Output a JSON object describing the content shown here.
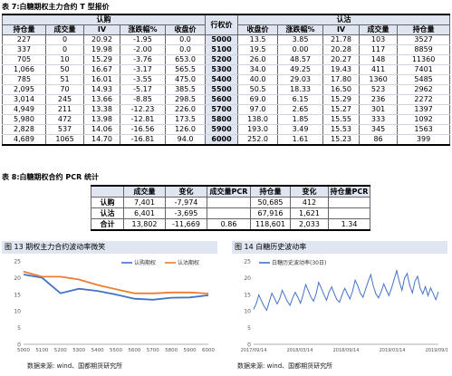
{
  "table7": {
    "caption": "表 7:白糖期权主力合约 T 型报价",
    "group_call": "认购",
    "group_strike": "行权价",
    "group_put": "认沽",
    "call_headers": [
      "持仓量",
      "成交量",
      "IV",
      "涨跌幅%",
      "收盘价"
    ],
    "put_headers": [
      "收盘价",
      "涨跌幅%",
      "IV",
      "成交量",
      "持仓量"
    ],
    "rows": [
      {
        "call": [
          "227",
          "0",
          "20.92",
          "-1.95",
          "0.0"
        ],
        "strike": "5000",
        "put": [
          "13.5",
          "3.85",
          "21.78",
          "103",
          "3527"
        ]
      },
      {
        "call": [
          "337",
          "0",
          "19.98",
          "-2.00",
          "0.0"
        ],
        "strike": "5100",
        "put": [
          "19.5",
          "0.00",
          "20.28",
          "117",
          "8859"
        ]
      },
      {
        "call": [
          "705",
          "10",
          "15.29",
          "-3.76",
          "653.0"
        ],
        "strike": "5200",
        "put": [
          "26.0",
          "48.57",
          "20.27",
          "148",
          "11360"
        ]
      },
      {
        "call": [
          "1,066",
          "50",
          "16.67",
          "-3.17",
          "565.5"
        ],
        "strike": "5300",
        "put": [
          "34.0",
          "49.25",
          "19.43",
          "411",
          "7401"
        ]
      },
      {
        "call": [
          "785",
          "51",
          "16.01",
          "-3.55",
          "475.0"
        ],
        "strike": "5400",
        "put": [
          "40.0",
          "29.03",
          "17.80",
          "1360",
          "5485"
        ]
      },
      {
        "call": [
          "2,095",
          "70",
          "14.93",
          "-5.17",
          "385.5"
        ],
        "strike": "5500",
        "put": [
          "50.5",
          "18.33",
          "16.50",
          "523",
          "2962"
        ]
      },
      {
        "call": [
          "3,014",
          "245",
          "13.66",
          "-8.85",
          "298.5"
        ],
        "strike": "5600",
        "put": [
          "69.0",
          "6.15",
          "15.29",
          "236",
          "2272"
        ]
      },
      {
        "call": [
          "4,949",
          "211",
          "13.38",
          "-12.23",
          "226.0"
        ],
        "strike": "5700",
        "put": [
          "97.0",
          "2.65",
          "15.27",
          "301",
          "1397"
        ]
      },
      {
        "call": [
          "5,980",
          "472",
          "13.98",
          "-12.81",
          "173.5"
        ],
        "strike": "5800",
        "put": [
          "138.0",
          "1.85",
          "15.55",
          "333",
          "1092"
        ]
      },
      {
        "call": [
          "2,828",
          "537",
          "14.06",
          "-16.56",
          "126.0"
        ],
        "strike": "5900",
        "put": [
          "193.0",
          "3.49",
          "15.53",
          "345",
          "1563"
        ]
      },
      {
        "call": [
          "4,689",
          "1065",
          "14.70",
          "-16.81",
          "94.0"
        ],
        "strike": "6000",
        "put": [
          "252.0",
          "1.61",
          "15.23",
          "86",
          "399"
        ]
      }
    ]
  },
  "table8": {
    "caption": "表 8:白糖期权合约 PCR 统计",
    "headers": [
      "",
      "成交量",
      "变化",
      "成交量PCR",
      "持仓量",
      "变化",
      "持仓量PCR"
    ],
    "rows": [
      [
        "认购",
        "7,401",
        "-7,974",
        "",
        "50,685",
        "412",
        ""
      ],
      [
        "认沽",
        "6,401",
        "-3,695",
        "",
        "67,916",
        "1,621",
        ""
      ],
      [
        "合计",
        "13,802",
        "-11,669",
        "0.86",
        "118,601",
        "2,033",
        "1.34"
      ]
    ]
  },
  "figure13": {
    "title": "图 13 期权主力合约波动率微笑",
    "source": "数据来源: wind、国都期货研究所",
    "chart_data": {
      "type": "line",
      "title": "",
      "x": [
        5000,
        5100,
        5200,
        5300,
        5400,
        5500,
        5600,
        5700,
        5800,
        5900,
        6000
      ],
      "x_tick_labels": [
        "5000",
        "5100",
        "5200",
        "5300",
        "5400",
        "5500",
        "5600",
        "5700",
        "5800",
        "5900",
        "6000"
      ],
      "series": [
        {
          "name": "认购期权",
          "color": "#4472c4",
          "values": [
            20.92,
            19.98,
            15.29,
            16.67,
            16.01,
            14.93,
            13.66,
            13.38,
            13.98,
            14.06,
            14.7
          ]
        },
        {
          "name": "认沽期权",
          "color": "#ed7d31",
          "values": [
            21.78,
            20.28,
            20.27,
            19.43,
            17.8,
            16.5,
            15.29,
            15.27,
            15.55,
            15.53,
            15.23
          ]
        }
      ],
      "ylim": [
        0,
        25
      ],
      "y_ticks": [
        0,
        5,
        10,
        15,
        20,
        25
      ],
      "legend": "top-right",
      "grid": false
    }
  },
  "figure14": {
    "title": "图 14 白糖历史波动率",
    "source": "数据来源: wind、国都期货研究所",
    "chart_data": {
      "type": "line",
      "title": "",
      "x_tick_labels": [
        "2017/09/14",
        "2018/03/14",
        "2018/09/14",
        "2019/03/14",
        "2019/09/14"
      ],
      "series": [
        {
          "name": "白糖历史波动率(30日)",
          "color": "#4472c4",
          "values": [
            10.5,
            12.2,
            14.8,
            13.1,
            11.4,
            10.2,
            12.7,
            15.3,
            13.8,
            12.1,
            13.6,
            16.2,
            14.5,
            12.8,
            11.7,
            13.9,
            15.6,
            14.1,
            12.3,
            14.8,
            17.9,
            16.1,
            14.2,
            12.9,
            15.1,
            18.6,
            16.8,
            14.9,
            13.2,
            15.7,
            17.2,
            15.1,
            13.4,
            12.6,
            14.9,
            16.8,
            15.2,
            13.6,
            15.9,
            19.2,
            17.6,
            15.3,
            14.1,
            16.4,
            18.8,
            20.9,
            17.4,
            15.1,
            13.9,
            15.8,
            18.1,
            16.3,
            14.6,
            16.9,
            19.5,
            22.1,
            18.7,
            16.2,
            19.8,
            21.2,
            17.6,
            15.4,
            18.9,
            20.4,
            16.8,
            15.1,
            17.3,
            14.6,
            16.9,
            15.2,
            13.4,
            15.7
          ]
        }
      ],
      "ylim": [
        0,
        25
      ],
      "y_ticks": [
        0,
        5,
        10,
        15,
        20,
        25
      ],
      "legend": "top-left",
      "grid": false
    }
  }
}
